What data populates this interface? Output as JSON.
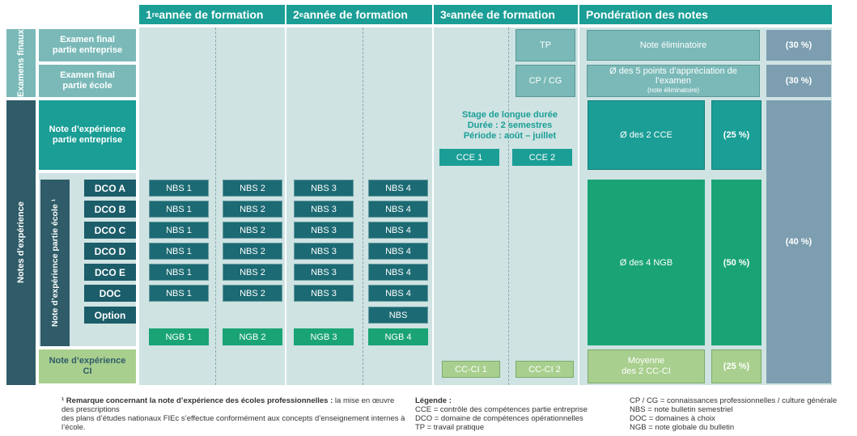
{
  "headers": {
    "year1": {
      "num": "1",
      "sup": "re",
      "text": " année de formation"
    },
    "year2": {
      "num": "2",
      "sup": "e",
      "text": " année de formation"
    },
    "year3": {
      "num": "3",
      "sup": "e",
      "text": " année de formation"
    },
    "weighting": "Pondération des notes"
  },
  "side": {
    "exams": "Examens finaux",
    "experience": "Notes d’expérience",
    "school_experience": "Note d’expérience partie école ¹"
  },
  "rows": {
    "exam_company": "Examen final partie entreprise",
    "exam_school": "Examen final partie école",
    "exp_company": "Note d’expérience partie entreprise",
    "exp_ci": "Note d’expérience CI"
  },
  "dco_rows": [
    {
      "label": "DCO A",
      "cells": [
        "NBS 1",
        "NBS 2",
        "NBS 3",
        "NBS 4"
      ]
    },
    {
      "label": "DCO B",
      "cells": [
        "NBS 1",
        "NBS 2",
        "NBS 3",
        "NBS 4"
      ]
    },
    {
      "label": "DCO C",
      "cells": [
        "NBS 1",
        "NBS 2",
        "NBS 3",
        "NBS 4"
      ]
    },
    {
      "label": "DCO D",
      "cells": [
        "NBS 1",
        "NBS 2",
        "NBS 3",
        "NBS 4"
      ]
    },
    {
      "label": "DCO E",
      "cells": [
        "NBS 1",
        "NBS 2",
        "NBS 3",
        "NBS 4"
      ]
    },
    {
      "label": "DOC",
      "cells": [
        "NBS 1",
        "NBS 2",
        "NBS 3",
        "NBS 4"
      ]
    }
  ],
  "option": {
    "label": "Option",
    "cell": "NBS"
  },
  "ngb": [
    "NGB 1",
    "NGB 2",
    "NGB 3",
    "NGB 4"
  ],
  "year3": {
    "tp": "TP",
    "cpcg": "CP / CG",
    "stage_line1": "Stage de longue durée",
    "stage_line2": "Durée : 2 semestres",
    "stage_line3": "Période : août – juillet",
    "cce1": "CCE 1",
    "cce2": "CCE 2",
    "ccci1": "CC-CI 1",
    "ccci2": "CC-CI 2"
  },
  "weighting": {
    "note_elim": "Note éliminatoire",
    "pct_30a": "(30 %)",
    "avg_exam_l1": "Ø des 5 points d’appréciation de l’examen",
    "avg_exam_l2": "(note éliminatoire)",
    "pct_30b": "(30 %)",
    "avg_cce": "Ø des 2 CCE",
    "pct_25a": "(25 %)",
    "avg_ngb": "Ø des 4 NGB",
    "pct_50": "(50 %)",
    "avg_ci_l1": "Moyenne",
    "avg_ci_l2": "des 2 CC-CI",
    "pct_25b": "(25 %)",
    "pct_40": "(40 %)"
  },
  "footnote": {
    "bold": "¹ Remarque concernant la note d’expérience des écoles professionnelles :",
    "text1": " la mise en œuvre des prescriptions",
    "text2": "des plans d’études nationaux FIEc s’effectue conformément aux concepts d’enseignement internes à l’école."
  },
  "legend": {
    "title": "Légende :",
    "col1": [
      "CCE = contrôle des compétences partie entreprise",
      "DCO = domaine de compétences opérationnelles",
      "TP = travail pratique"
    ],
    "col2": [
      "CP / CG = connaissances professionnelles / culture générale",
      "NBS = note bulletin semestriel",
      "DOC = domaines à choix",
      "NGB = note globale du bulletin"
    ]
  },
  "colors": {
    "teal": "#1a9e96",
    "dark": "#1c5d6a",
    "green": "#1aa476",
    "light_teal": "#7ab9b8",
    "light_green": "#a8cf8e",
    "slate": "#7c9eb0"
  }
}
